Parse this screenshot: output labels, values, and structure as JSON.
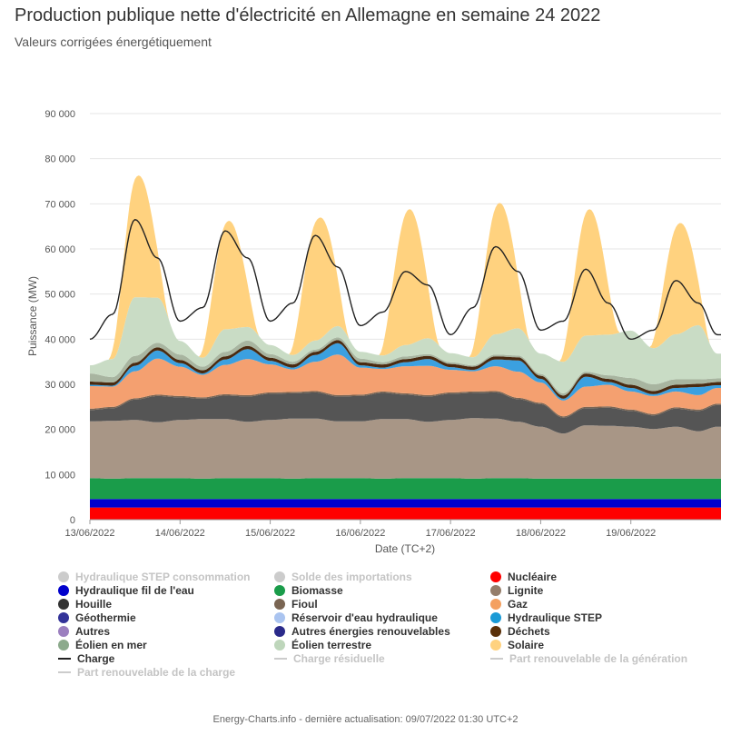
{
  "title": "Production publique nette d'électricité en Allemagne en semaine 24 2022",
  "subtitle": "Valeurs corrigées énergétiquement",
  "footer": "Energy-Charts.info - dernière actualisation: 09/07/2022 01:30 UTC+2",
  "chart_data": {
    "type": "area",
    "stacked": true,
    "xlabel": "Date (TC+2)",
    "ylabel": "Puissance (MW)",
    "ylim": [
      0,
      90000
    ],
    "yticks": [
      0,
      10000,
      20000,
      30000,
      40000,
      50000,
      60000,
      70000,
      80000,
      90000
    ],
    "ytick_labels": [
      "0",
      "10 000",
      "20 000",
      "30 000",
      "40 000",
      "50 000",
      "60 000",
      "70 000",
      "80 000",
      "90 000"
    ],
    "x_days": [
      "13/06/2022",
      "14/06/2022",
      "15/06/2022",
      "16/06/2022",
      "17/06/2022",
      "18/06/2022",
      "19/06/2022"
    ],
    "x_hours": [
      0,
      6,
      12,
      18,
      24,
      30,
      36,
      42,
      48,
      54,
      60,
      66,
      72,
      78,
      84,
      90,
      96,
      102,
      108,
      114,
      120,
      126,
      132,
      138,
      144,
      150,
      156,
      162,
      167
    ],
    "grid": true,
    "series": [
      {
        "name": "Nucléaire",
        "color": "#ff0000",
        "values": [
          2700,
          2700,
          2700,
          2700,
          2700,
          2700,
          2700,
          2700,
          2700,
          2700,
          2700,
          2700,
          2700,
          2700,
          2700,
          2700,
          2700,
          2700,
          2700,
          2700,
          2700,
          2700,
          2700,
          2700,
          2700,
          2700,
          2700,
          2700,
          2700
        ]
      },
      {
        "name": "Hydraulique fil de l'eau",
        "color": "#0000cc",
        "values": [
          1900,
          1900,
          1900,
          1900,
          1900,
          1900,
          1900,
          1900,
          1900,
          1900,
          1900,
          1900,
          1900,
          1900,
          1900,
          1900,
          1900,
          1900,
          1900,
          1900,
          1900,
          1900,
          1900,
          1900,
          1900,
          1900,
          1900,
          1900,
          1900
        ]
      },
      {
        "name": "Biomasse",
        "color": "#1a9c4a",
        "values": [
          4600,
          4500,
          4600,
          4600,
          4600,
          4500,
          4600,
          4600,
          4600,
          4500,
          4600,
          4600,
          4600,
          4500,
          4600,
          4600,
          4600,
          4500,
          4600,
          4600,
          4500,
          4500,
          4500,
          4500,
          4500,
          4500,
          4500,
          4500,
          4500
        ]
      },
      {
        "name": "Lignite",
        "color": "#a89686",
        "values": [
          12600,
          12800,
          12900,
          12400,
          12900,
          13200,
          13100,
          12500,
          12900,
          13300,
          13200,
          12600,
          12600,
          13200,
          13100,
          12500,
          12900,
          13400,
          13200,
          12500,
          11500,
          10000,
          11800,
          11700,
          11500,
          11000,
          11500,
          10500,
          11500
        ]
      },
      {
        "name": "Houille",
        "color": "#555555",
        "values": [
          2500,
          2800,
          4500,
          5800,
          5000,
          4500,
          5200,
          5600,
          5800,
          5600,
          5800,
          5500,
          5600,
          5800,
          5400,
          5600,
          5800,
          5600,
          5800,
          5000,
          5000,
          3500,
          3800,
          4000,
          3500,
          3000,
          4000,
          4500,
          4800
        ]
      },
      {
        "name": "Fioul",
        "color": "#7a6553",
        "values": [
          300,
          300,
          300,
          300,
          300,
          300,
          300,
          300,
          300,
          300,
          300,
          300,
          300,
          300,
          300,
          300,
          300,
          300,
          300,
          300,
          300,
          300,
          300,
          300,
          300,
          300,
          300,
          300,
          300
        ]
      },
      {
        "name": "Gaz",
        "color": "#f4a070",
        "values": [
          5000,
          4500,
          6000,
          8000,
          6500,
          5000,
          6500,
          8000,
          6200,
          5000,
          6500,
          9000,
          6000,
          5000,
          6000,
          6500,
          5000,
          4500,
          5500,
          5800,
          4500,
          3500,
          4500,
          4800,
          4000,
          4000,
          3500,
          3200,
          3500
        ]
      },
      {
        "name": "Hydraulique STEP",
        "color": "#3ba0e0",
        "values": [
          300,
          200,
          1200,
          1800,
          800,
          300,
          1200,
          2200,
          800,
          400,
          1500,
          2500,
          500,
          300,
          900,
          1500,
          600,
          300,
          1500,
          2500,
          800,
          400,
          2200,
          600,
          800,
          400,
          800,
          1800,
          600
        ]
      },
      {
        "name": "Déchets",
        "color": "#4a2a10",
        "values": [
          700,
          700,
          700,
          700,
          700,
          700,
          700,
          700,
          700,
          700,
          700,
          700,
          700,
          700,
          700,
          700,
          700,
          700,
          700,
          700,
          700,
          700,
          700,
          700,
          700,
          700,
          700,
          700,
          700
        ]
      },
      {
        "name": "Éolien en mer",
        "color": "#a8b5a0",
        "values": [
          1800,
          1200,
          1500,
          1000,
          1200,
          800,
          1000,
          1200,
          800,
          600,
          500,
          600,
          800,
          500,
          600,
          400,
          400,
          300,
          400,
          400,
          400,
          500,
          400,
          800,
          1500,
          1500,
          1200,
          1000,
          800
        ]
      },
      {
        "name": "Éolien terrestre",
        "color": "#c9dcc5",
        "values": [
          1800,
          4000,
          13000,
          10000,
          3000,
          2000,
          5000,
          3000,
          2000,
          1500,
          2000,
          2500,
          1500,
          1500,
          2500,
          3500,
          2000,
          1800,
          4500,
          6000,
          4500,
          7000,
          8000,
          9000,
          10500,
          8000,
          10000,
          12000,
          5500
        ]
      },
      {
        "name": "Solaire",
        "color": "#ffd27f",
        "values": [
          0,
          0,
          27000,
          0,
          0,
          0,
          24000,
          0,
          0,
          0,
          27000,
          0,
          0,
          0,
          30000,
          0,
          0,
          0,
          29000,
          0,
          0,
          0,
          28000,
          0,
          0,
          0,
          24500,
          0,
          0
        ]
      }
    ],
    "load": {
      "name": "Charge",
      "color": "#222222",
      "values": [
        40000,
        45500,
        66500,
        58000,
        44000,
        47000,
        64000,
        58000,
        44000,
        48000,
        63000,
        56000,
        43000,
        46000,
        55000,
        52000,
        41000,
        47000,
        60500,
        55000,
        42000,
        44000,
        55500,
        48000,
        40000,
        42000,
        53000,
        48000,
        41000
      ]
    },
    "legend": [
      [
        {
          "name": "Hydraulique STEP consommation",
          "color": "#cccccc",
          "marker": "dot",
          "dim": true
        },
        {
          "name": "Solde des importations",
          "color": "#cccccc",
          "marker": "dot",
          "dim": true
        },
        {
          "name": "Nucléaire",
          "color": "#ff0000",
          "marker": "dot",
          "dim": false
        }
      ],
      [
        {
          "name": "Hydraulique fil de l'eau",
          "color": "#0000cc",
          "marker": "dot",
          "dim": false
        },
        {
          "name": "Biomasse",
          "color": "#1a9c4a",
          "marker": "dot",
          "dim": false
        },
        {
          "name": "Lignite",
          "color": "#957d6a",
          "marker": "dot",
          "dim": false
        }
      ],
      [
        {
          "name": "Houille",
          "color": "#333333",
          "marker": "dot",
          "dim": false
        },
        {
          "name": "Fioul",
          "color": "#7a6553",
          "marker": "dot",
          "dim": false
        },
        {
          "name": "Gaz",
          "color": "#f4a060",
          "marker": "dot",
          "dim": false
        }
      ],
      [
        {
          "name": "Géothermie",
          "color": "#333399",
          "marker": "dot",
          "dim": false
        },
        {
          "name": "Réservoir d'eau hydraulique",
          "color": "#aac4f0",
          "marker": "dot",
          "dim": false
        },
        {
          "name": "Hydraulique STEP",
          "color": "#1a9ad6",
          "marker": "dot",
          "dim": false
        }
      ],
      [
        {
          "name": "Autres",
          "color": "#9b7fbf",
          "marker": "dot",
          "dim": false
        },
        {
          "name": "Autres énergies renouvelables",
          "color": "#2a2a8a",
          "marker": "dot",
          "dim": false
        },
        {
          "name": "Déchets",
          "color": "#5a3008",
          "marker": "dot",
          "dim": false
        }
      ],
      [
        {
          "name": "Éolien en mer",
          "color": "#8caa8c",
          "marker": "dot",
          "dim": false
        },
        {
          "name": "Éolien terrestre",
          "color": "#bed6bb",
          "marker": "dot",
          "dim": false
        },
        {
          "name": "Solaire",
          "color": "#ffd27f",
          "marker": "dot",
          "dim": false
        }
      ],
      [
        {
          "name": "Charge",
          "color": "#222222",
          "marker": "line",
          "dim": false
        },
        {
          "name": "Charge résiduelle",
          "color": "#cccccc",
          "marker": "line",
          "dim": true
        },
        {
          "name": "Part renouvelable de la génération",
          "color": "#cccccc",
          "marker": "line",
          "dim": true
        }
      ],
      [
        {
          "name": "Part renouvelable de la charge",
          "color": "#cccccc",
          "marker": "line",
          "dim": true
        }
      ]
    ]
  }
}
